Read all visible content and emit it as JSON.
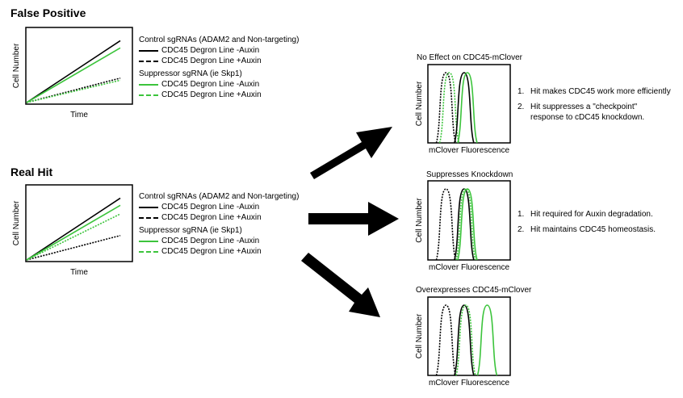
{
  "colors": {
    "black": "#000000",
    "green": "#3cc43c"
  },
  "left_panels": [
    {
      "heading": "False Positive",
      "chart_data": {
        "type": "line",
        "xlabel": "Time",
        "ylabel": "Cell Number",
        "series": [
          {
            "name": "CDC45 Degron Line -Auxin",
            "group": "control",
            "style": "solid",
            "color": "#000000",
            "end": 0.86
          },
          {
            "name": "CDC45 Degron Line +Auxin",
            "group": "control",
            "style": "dashed",
            "color": "#000000",
            "end": 0.34
          },
          {
            "name": "CDC45 Degron Line -Auxin",
            "group": "suppressor",
            "style": "solid",
            "color": "#3cc43c",
            "end": 0.76
          },
          {
            "name": "CDC45 Degron Line +Auxin",
            "group": "suppressor",
            "style": "dashed",
            "color": "#3cc43c",
            "end": 0.31
          }
        ]
      },
      "legend": {
        "control_title": "Control sgRNAs (ADAM2 and Non-targeting)",
        "suppressor_title": "Suppressor sgRNA (ie Skp1)"
      }
    },
    {
      "heading": "Real Hit",
      "chart_data": {
        "type": "line",
        "xlabel": "Time",
        "ylabel": "Cell Number",
        "series": [
          {
            "name": "CDC45 Degron Line -Auxin",
            "group": "control",
            "style": "solid",
            "color": "#000000",
            "end": 0.86
          },
          {
            "name": "CDC45 Degron Line +Auxin",
            "group": "control",
            "style": "dashed",
            "color": "#000000",
            "end": 0.34
          },
          {
            "name": "CDC45 Degron Line -Auxin",
            "group": "suppressor",
            "style": "solid",
            "color": "#3cc43c",
            "end": 0.76
          },
          {
            "name": "CDC45 Degron Line +Auxin",
            "group": "suppressor",
            "style": "dashed",
            "color": "#3cc43c",
            "end": 0.64
          }
        ]
      },
      "legend": {
        "control_title": "Control sgRNAs (ADAM2 and Non-targeting)",
        "suppressor_title": "Suppressor sgRNA (ie Skp1)"
      }
    }
  ],
  "right_panels": [
    {
      "title": "No Effect on CDC45-mClover",
      "chart_data": {
        "type": "histogram",
        "xlabel": "mClover Fluorescence",
        "ylabel": "Cell Number",
        "peaks": [
          {
            "center": 0.22,
            "style": "dashed",
            "color": "#000000"
          },
          {
            "center": 0.26,
            "style": "dashed",
            "color": "#3cc43c"
          },
          {
            "center": 0.44,
            "style": "solid",
            "color": "#000000"
          },
          {
            "center": 0.48,
            "style": "solid",
            "color": "#3cc43c"
          }
        ]
      },
      "notes": [
        {
          "num": "1.",
          "text": "Hit makes CDC45 work more efficiently"
        },
        {
          "num": "2.",
          "text": "Hit suppresses a \"checkpoint\"\nresponse to cDC45 knockdown."
        }
      ]
    },
    {
      "title": "Suppresses Knockdown",
      "chart_data": {
        "type": "histogram",
        "xlabel": "mClover Fluorescence",
        "ylabel": "Cell Number",
        "peaks": [
          {
            "center": 0.22,
            "style": "dashed",
            "color": "#000000"
          },
          {
            "center": 0.44,
            "style": "solid",
            "color": "#000000"
          },
          {
            "center": 0.46,
            "style": "dashed",
            "color": "#3cc43c"
          },
          {
            "center": 0.48,
            "style": "solid",
            "color": "#3cc43c"
          }
        ]
      },
      "notes": [
        {
          "num": "1.",
          "text": "Hit required for Auxin degradation."
        },
        {
          "num": "2.",
          "text": "Hit maintains CDC45 homeostasis."
        }
      ]
    },
    {
      "title": "Overexpresses CDC45-mClover",
      "chart_data": {
        "type": "histogram",
        "xlabel": "mClover Fluorescence",
        "ylabel": "Cell Number",
        "peaks": [
          {
            "center": 0.22,
            "style": "dashed",
            "color": "#000000"
          },
          {
            "center": 0.44,
            "style": "solid",
            "color": "#000000"
          },
          {
            "center": 0.46,
            "style": "dashed",
            "color": "#3cc43c"
          },
          {
            "center": 0.72,
            "style": "solid",
            "color": "#3cc43c"
          }
        ]
      },
      "notes": []
    }
  ]
}
